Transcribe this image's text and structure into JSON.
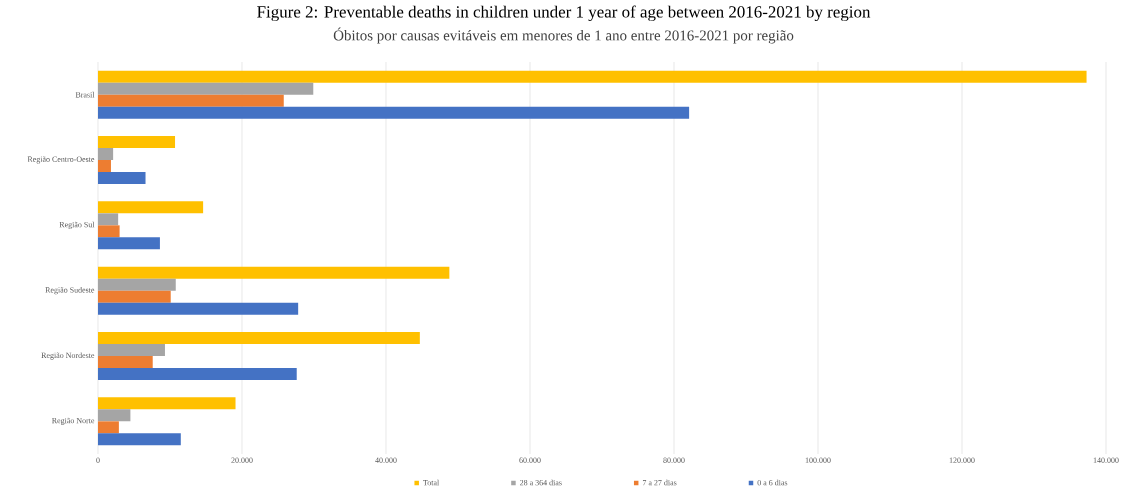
{
  "chart_data": {
    "type": "bar",
    "orientation": "horizontal",
    "title": "Figure 2: Preventable deaths in children under 1 year of age between 2016-2021 by region",
    "subtitle": "Óbitos por causas evitáveis em menores de 1 ano entre 2016-2021 por região",
    "categories": [
      "Brasil",
      "Região Centro-Oeste",
      "Região Sul",
      "Região Sudeste",
      "Região Nordeste",
      "Região Norte"
    ],
    "series": [
      {
        "name": "Total",
        "color": "#ffc000",
        "values": [
          137300,
          10700,
          14600,
          48800,
          44700,
          19100
        ]
      },
      {
        "name": "28 a 364 dias",
        "color": "#a5a5a5",
        "values": [
          29900,
          2100,
          2800,
          10800,
          9300,
          4500
        ]
      },
      {
        "name": "7 a 27 dias",
        "color": "#ed7d31",
        "values": [
          25800,
          1800,
          3000,
          10100,
          7600,
          2900
        ]
      },
      {
        "name": "0 a 6 dias",
        "color": "#4472c4",
        "values": [
          82100,
          6600,
          8600,
          27800,
          27600,
          11500
        ]
      }
    ],
    "xlim": [
      0,
      140000
    ],
    "xticks": [
      0,
      {
        "value": 20000,
        "label": "20.000"
      },
      {
        "value": 40000,
        "label": "40.000"
      },
      {
        "value": 60000,
        "label": "60.000"
      },
      {
        "value": 80000,
        "label": "80.000"
      },
      {
        "value": 100000,
        "label": "100.000"
      },
      {
        "value": 120000,
        "label": "120.000"
      },
      {
        "value": 140000,
        "label": "140.000"
      }
    ],
    "grid": "x",
    "legend": "bottom"
  }
}
